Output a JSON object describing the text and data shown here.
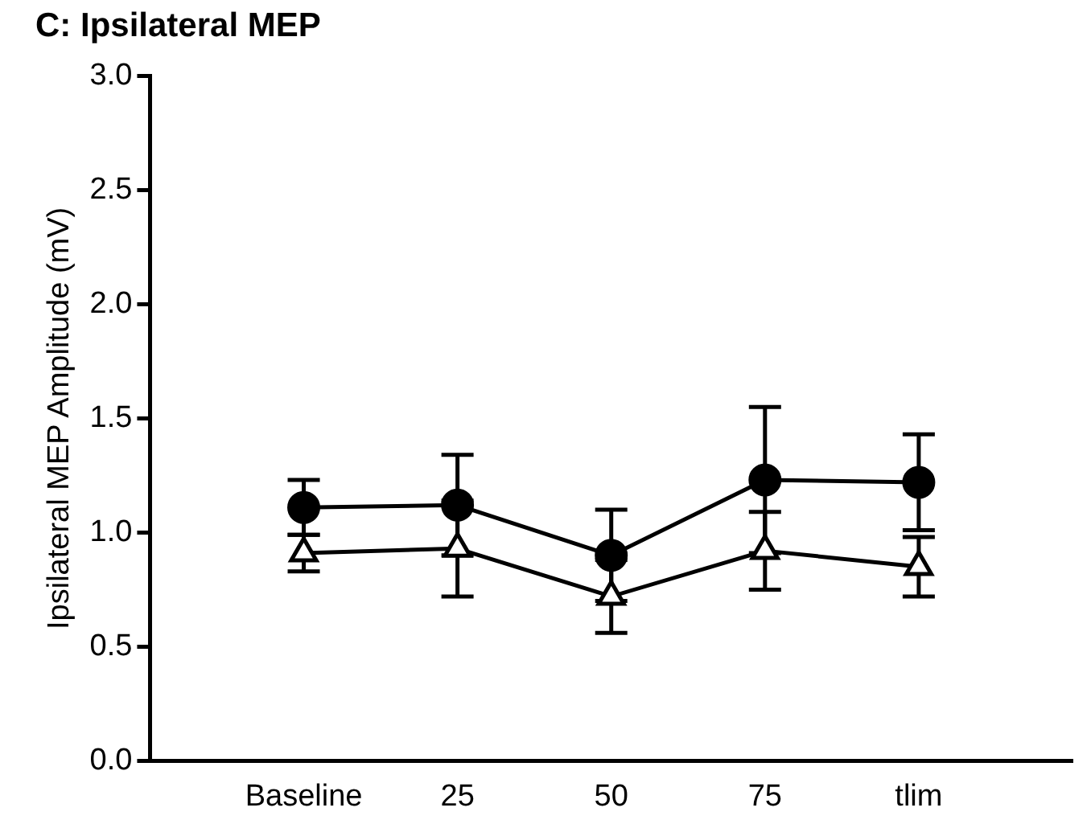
{
  "chart_data": {
    "type": "line",
    "title": "C: Ipsilateral MEP",
    "ylabel": "Ipsilateral MEP Amplitude (mV)",
    "categories": [
      "Baseline",
      "25",
      "50",
      "75",
      "tlim"
    ],
    "series": [
      {
        "color": "#000000",
        "marker": "circle",
        "values": [
          1.11,
          1.12,
          0.9,
          1.23,
          1.22
        ],
        "errors": [
          0.12,
          0.22,
          0.2,
          0.32,
          0.21
        ]
      },
      {
        "color": "#000000",
        "marker": "triangle",
        "values": [
          0.91,
          0.93,
          0.72,
          0.92,
          0.85
        ],
        "errors": [
          0.08,
          0.21,
          0.16,
          0.17,
          0.13
        ]
      }
    ],
    "ylim": [
      0,
      3
    ],
    "yticks": [
      {
        "value": 0,
        "label": "0.0"
      },
      0.5,
      {
        "value": 1,
        "label": "1.0"
      },
      1.5,
      {
        "value": 2,
        "label": "2.0"
      },
      2.5,
      {
        "value": 3,
        "label": "3.0"
      }
    ],
    "grid": false,
    "legend": false
  }
}
